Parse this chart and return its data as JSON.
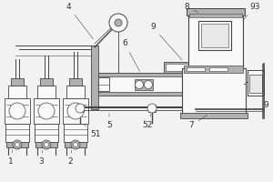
{
  "bg_color": "#f2f2f2",
  "line_color": "#444444",
  "fill_light": "#e8e8e8",
  "fill_dark": "#b0b0b0",
  "fill_white": "#f8f8f8",
  "label_fontsize": 6.5,
  "label_color": "#333333"
}
